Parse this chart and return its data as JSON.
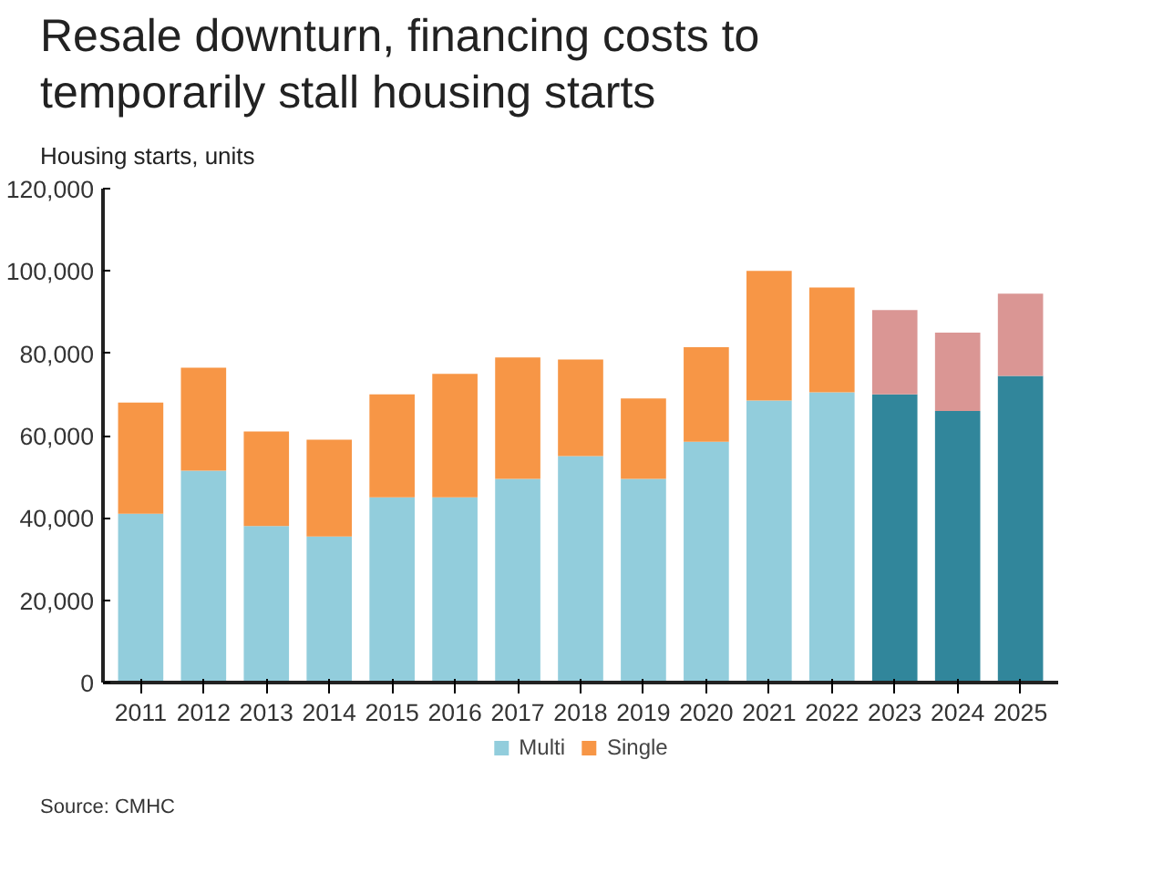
{
  "chart_data": {
    "type": "bar",
    "title": "Resale downturn, financing costs to temporarily stall housing starts",
    "ylabel": "Housing starts, units",
    "annotations": [
      "Source: CMHC"
    ],
    "categories": [
      "2011",
      "2012",
      "2013",
      "2014",
      "2015",
      "2016",
      "2017",
      "2018",
      "2019",
      "2020",
      "2021",
      "2022",
      "2023",
      "2024",
      "2025"
    ],
    "stacked": true,
    "legend": "bottom",
    "grid": false,
    "ylim": [
      0,
      120000
    ],
    "yticks": [
      0,
      {
        "value": 20000,
        "label": "20,000"
      },
      {
        "value": 40000,
        "label": "40,000"
      },
      {
        "value": 60000,
        "label": "60,000"
      },
      {
        "value": 80000,
        "label": "80,000"
      },
      {
        "value": 100000,
        "label": "100,000"
      },
      {
        "value": 120000,
        "label": "120,000"
      }
    ],
    "series": [
      {
        "name": "Multi",
        "values": [
          41000,
          51500,
          38000,
          35500,
          45000,
          45000,
          49500,
          55000,
          49500,
          58500,
          68500,
          70500,
          70000,
          66000,
          74500
        ],
        "colors": [
          "#92cddc",
          "#92cddc",
          "#92cddc",
          "#92cddc",
          "#92cddc",
          "#92cddc",
          "#92cddc",
          "#92cddc",
          "#92cddc",
          "#92cddc",
          "#92cddc",
          "#92cddc",
          "#31869b",
          "#31869b",
          "#31869b"
        ]
      },
      {
        "name": "Single",
        "values": [
          27000,
          25000,
          23000,
          23500,
          25000,
          30000,
          29500,
          23500,
          19500,
          23000,
          31500,
          25500,
          20500,
          19000,
          20000
        ],
        "colors": [
          "#f79646",
          "#f79646",
          "#f79646",
          "#f79646",
          "#f79646",
          "#f79646",
          "#f79646",
          "#f79646",
          "#f79646",
          "#f79646",
          "#f79646",
          "#f79646",
          "#da9694",
          "#da9694",
          "#da9694"
        ]
      }
    ]
  }
}
